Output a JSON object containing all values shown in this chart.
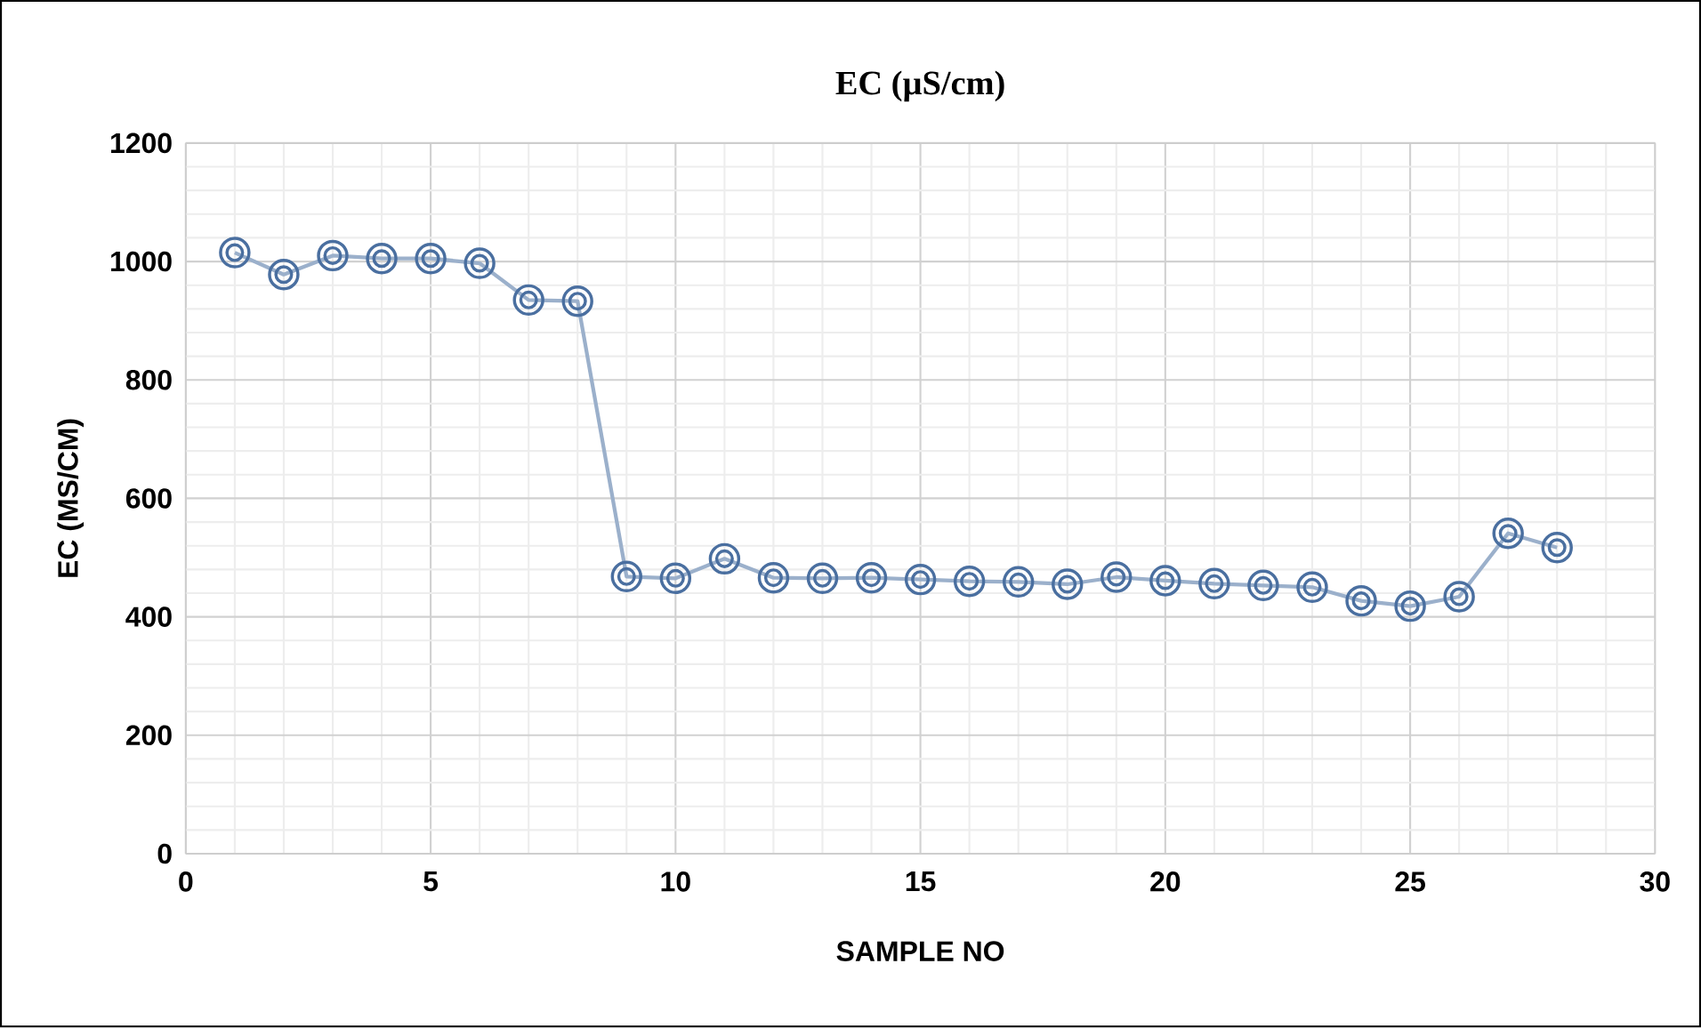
{
  "chart_data": {
    "type": "line",
    "title": "EC (µS/cm)",
    "xlabel": "SAMPLE NO",
    "ylabel": "EC (MS/CM)",
    "x": [
      1,
      2,
      3,
      4,
      5,
      6,
      7,
      8,
      9,
      10,
      11,
      12,
      13,
      14,
      15,
      16,
      17,
      18,
      19,
      20,
      21,
      22,
      23,
      24,
      25,
      26,
      27,
      28
    ],
    "series": [
      {
        "color": "#4a6fa0",
        "values": [
          1015,
          978,
          1010,
          1005,
          1005,
          997,
          935,
          933,
          468,
          465,
          498,
          466,
          465,
          466,
          463,
          460,
          459,
          455,
          467,
          461,
          456,
          453,
          450,
          427,
          418,
          434,
          541,
          517
        ]
      }
    ],
    "xlim": [
      0,
      30
    ],
    "xticks": [
      0,
      5,
      10,
      15,
      20,
      25,
      30
    ],
    "ylim": [
      0,
      1200
    ],
    "yticks": [
      0,
      200,
      400,
      600,
      800,
      1000,
      1200
    ],
    "grid": true,
    "marker": "circle",
    "line_style": "solid"
  }
}
